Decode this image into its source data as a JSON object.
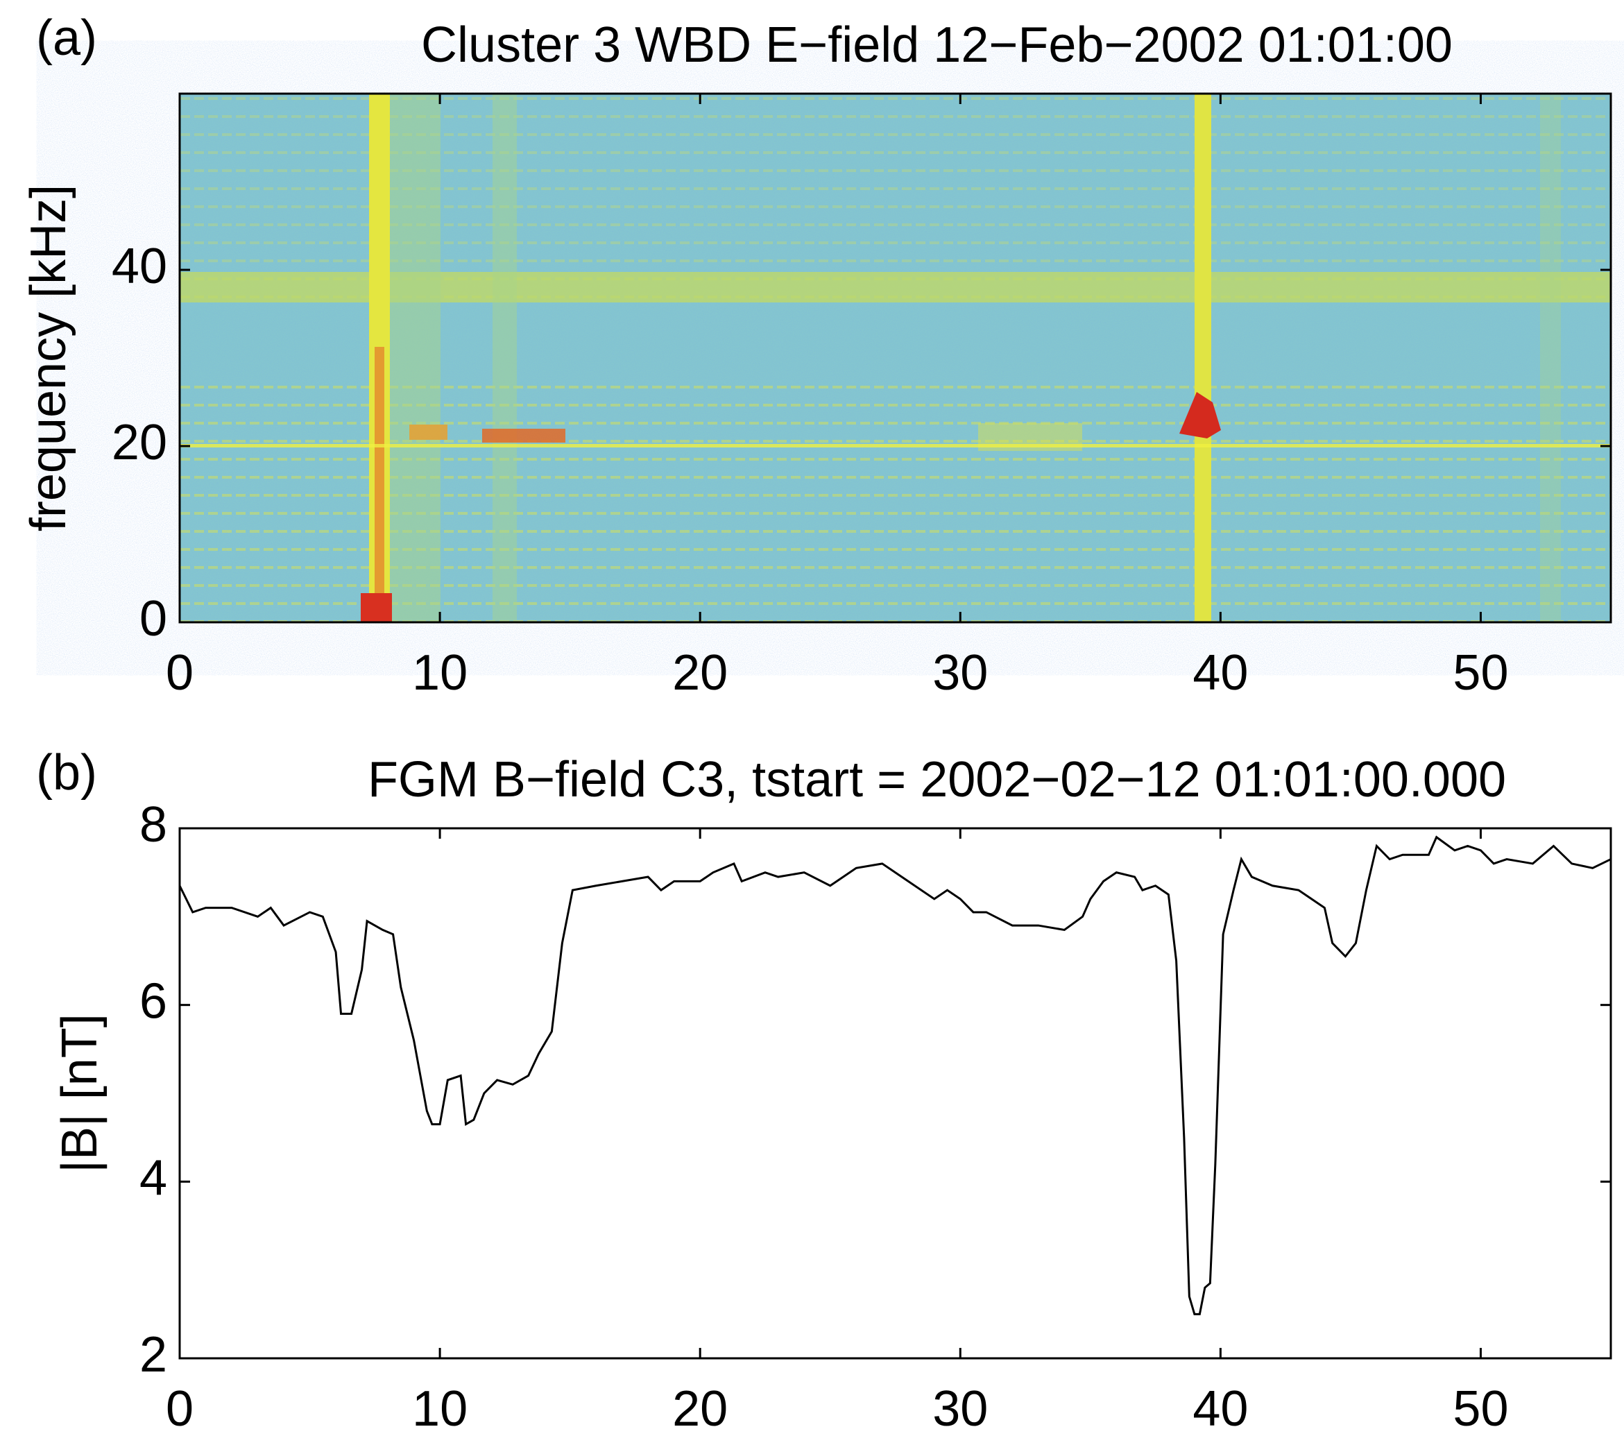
{
  "chart_data": [
    {
      "type": "spectrogram",
      "panel_label": "(a)",
      "title": "Cluster 3 WBD E−field 12−Feb−2002 01:01:00",
      "ylabel": "frequency [kHz]",
      "xlim": [
        0,
        55
      ],
      "xticks": [
        0,
        10,
        20,
        30,
        40,
        50
      ],
      "ylim": [
        0,
        60
      ],
      "yticks": [
        0,
        20,
        40
      ]
    },
    {
      "type": "line",
      "panel_label": "(b)",
      "title": "FGM B−field C3, tstart = 2002−02−12 01:01:00.000",
      "ylabel": "|B| [nT]",
      "xlim": [
        0,
        55
      ],
      "xticks": [
        0,
        10,
        20,
        30,
        40,
        50
      ],
      "ylim": [
        2,
        8
      ],
      "yticks": [
        2,
        4,
        6,
        8
      ],
      "color": "#000000",
      "x": [
        0,
        0.5,
        1,
        2,
        3,
        3.5,
        4,
        5,
        5.5,
        6,
        6.2,
        6.6,
        7,
        7.2,
        7.8,
        8.2,
        8.5,
        9,
        9.5,
        9.7,
        10,
        10.3,
        10.8,
        11,
        11.3,
        11.7,
        12.2,
        12.8,
        13.4,
        13.8,
        14.3,
        14.7,
        15.1,
        16,
        17,
        18,
        18.5,
        19,
        20,
        20.5,
        21.3,
        21.6,
        22.5,
        23,
        24,
        25,
        26,
        27,
        28,
        29,
        29.5,
        30,
        30.5,
        31,
        32,
        33,
        34,
        34.7,
        35,
        35.5,
        36,
        36.7,
        37,
        37.5,
        38,
        38.3,
        38.6,
        38.8,
        39,
        39.2,
        39.4,
        39.6,
        39.8,
        40.1,
        40.5,
        40.8,
        41.2,
        42,
        43,
        43.5,
        44,
        44.3,
        44.8,
        45.2,
        45.6,
        46,
        46.5,
        47,
        48,
        48.3,
        49,
        49.5,
        50,
        50.5,
        51,
        52,
        52.8,
        53.5,
        54.3,
        55
      ],
      "values": [
        7.35,
        7.05,
        7.1,
        7.1,
        7.0,
        7.1,
        6.9,
        7.05,
        7.0,
        6.6,
        5.9,
        5.9,
        6.4,
        6.95,
        6.85,
        6.8,
        6.2,
        5.6,
        4.8,
        4.65,
        4.65,
        5.15,
        5.2,
        4.65,
        4.7,
        5.0,
        5.15,
        5.1,
        5.2,
        5.45,
        5.7,
        6.7,
        7.3,
        7.35,
        7.4,
        7.45,
        7.3,
        7.4,
        7.4,
        7.5,
        7.6,
        7.4,
        7.5,
        7.45,
        7.5,
        7.35,
        7.55,
        7.6,
        7.4,
        7.2,
        7.3,
        7.2,
        7.05,
        7.05,
        6.9,
        6.9,
        6.85,
        7.0,
        7.2,
        7.4,
        7.5,
        7.45,
        7.3,
        7.35,
        7.25,
        6.5,
        4.5,
        2.7,
        2.5,
        2.5,
        2.8,
        2.85,
        4.2,
        6.8,
        7.3,
        7.65,
        7.45,
        7.35,
        7.3,
        7.2,
        7.1,
        6.7,
        6.55,
        6.7,
        7.3,
        7.8,
        7.65,
        7.7,
        7.7,
        7.9,
        7.75,
        7.8,
        7.75,
        7.6,
        7.65,
        7.6,
        7.8,
        7.6,
        7.55,
        7.65
      ]
    }
  ]
}
